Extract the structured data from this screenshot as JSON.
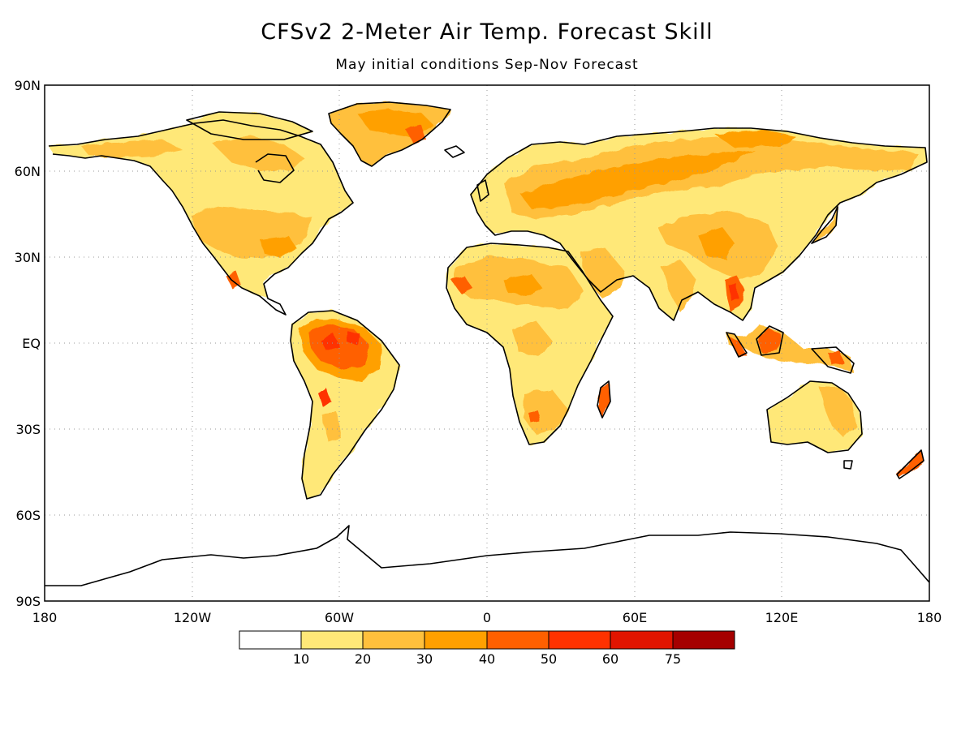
{
  "title": "CFSv2 2-Meter Air Temp. Forecast Skill",
  "subtitle": "May initial conditions  Sep-Nov Forecast",
  "map": {
    "projection": "equirectangular",
    "lon_range": [
      -180,
      180
    ],
    "lat_range": [
      -90,
      90
    ],
    "gridlines": true,
    "lat_labels": [
      "90N",
      "60N",
      "30N",
      "EQ",
      "30S",
      "60S",
      "90S"
    ],
    "lon_labels": [
      "180",
      "120W",
      "60W",
      "0",
      "60E",
      "120E",
      "180"
    ]
  },
  "legend": {
    "colors": [
      "#ffffff",
      "#ffe878",
      "#ffc03c",
      "#ffa000",
      "#ff6000",
      "#ff3200",
      "#e11400",
      "#a50000"
    ],
    "labels": [
      "10",
      "20",
      "30",
      "40",
      "50",
      "60",
      "75"
    ]
  }
}
